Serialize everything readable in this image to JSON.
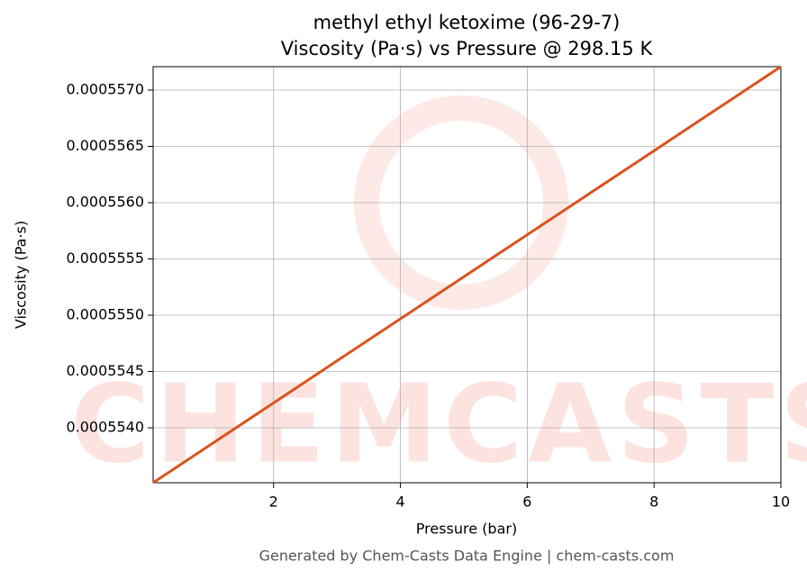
{
  "chart_data": {
    "type": "line",
    "title": "methyl ethyl ketoxime (96-29-7)",
    "subtitle": "Viscosity (Pa·s) vs Pressure @ 298.15 K",
    "x_label": "Pressure (bar)",
    "y_label": "Viscosity (Pa·s)",
    "footer": "Generated by Chem-Casts Data Engine | chem-casts.com",
    "watermark": "CHEMCASTS",
    "x": [
      0.1,
      2,
      4,
      6,
      8,
      10
    ],
    "series": [
      {
        "name": "Viscosity",
        "color": "#d9541e",
        "values": [
          0.0005535119,
          0.0005542213,
          0.000554968,
          0.0005557147,
          0.0005564614,
          0.0005572081
        ]
      }
    ],
    "xlim": [
      0.1,
      10
    ],
    "xticks": [
      2,
      4,
      6,
      8,
      10
    ],
    "ylim": [
      0.0005535119,
      0.0005572081
    ],
    "yticks": [
      {
        "value": 0.000554,
        "label": "0.0005540"
      },
      {
        "value": 0.0005545,
        "label": "0.0005545"
      },
      {
        "value": 0.000555,
        "label": "0.0005550"
      },
      {
        "value": 0.0005555,
        "label": "0.0005555"
      },
      {
        "value": 0.000556,
        "label": "0.0005560"
      },
      {
        "value": 0.0005565,
        "label": "0.0005565"
      },
      {
        "value": 0.000557,
        "label": "0.0005570"
      }
    ],
    "grid": true
  }
}
